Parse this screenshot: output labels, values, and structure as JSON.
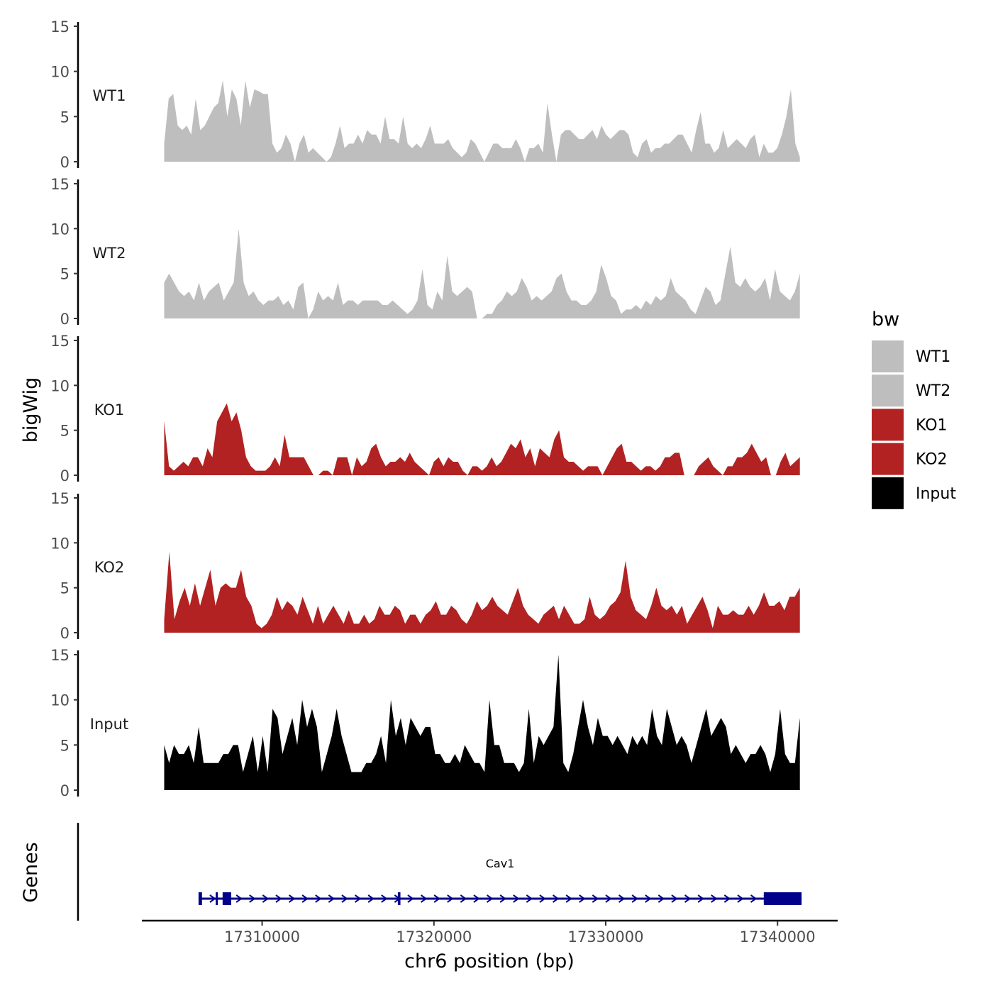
{
  "chart_data": {
    "type": "area",
    "title": "",
    "xlabel": "chr6 position (bp)",
    "ylabel": "bigWig",
    "genes_label": "Genes",
    "xlim": [
      17303000,
      17343500
    ],
    "data_x_range": [
      17304300,
      17341300
    ],
    "ylim": [
      0,
      15
    ],
    "y_ticks": [
      0,
      5,
      10,
      15
    ],
    "x_ticks": [
      17310000,
      17320000,
      17330000,
      17340000
    ],
    "x_tick_labels": [
      "17310000",
      "17320000",
      "17330000",
      "17340000"
    ],
    "legend": {
      "title": "bw",
      "entries": [
        {
          "label": "WT1",
          "color": "#bebebe"
        },
        {
          "label": "WT2",
          "color": "#bebebe"
        },
        {
          "label": "KO1",
          "color": "#b22222"
        },
        {
          "label": "KO2",
          "color": "#b22222"
        },
        {
          "label": "Input",
          "color": "#000000"
        }
      ]
    },
    "series": [
      {
        "name": "WT1",
        "color": "#bebebe",
        "values": [
          2,
          7,
          7.5,
          4,
          3.5,
          4,
          3,
          7,
          3.5,
          4,
          5,
          6,
          6.5,
          9,
          5,
          8,
          7,
          4,
          9,
          6,
          8,
          7.8,
          7.5,
          7.5,
          2,
          1,
          1.5,
          3,
          2,
          0,
          2,
          3,
          1,
          1.5,
          1,
          0.5,
          0,
          0.5,
          2,
          4,
          1.5,
          2,
          2,
          3,
          2,
          3.5,
          3,
          3,
          2,
          5,
          2.5,
          2.5,
          2,
          5,
          2,
          1.5,
          2,
          1.5,
          2.5,
          4,
          2,
          2,
          2,
          2.5,
          1.5,
          1,
          0.5,
          1,
          2.5,
          2,
          1,
          0,
          1,
          2,
          2,
          1.5,
          1.5,
          1.5,
          2.5,
          1.5,
          0,
          1.5,
          1.5,
          2,
          1,
          6.5,
          3,
          0,
          3,
          3.5,
          3.5,
          3,
          2.5,
          2.5,
          3,
          3.5,
          2.5,
          4,
          3,
          2.5,
          3,
          3.5,
          3.5,
          3,
          1,
          0.5,
          2,
          2.5,
          1,
          1.5,
          1.5,
          2,
          2,
          2.5,
          3,
          3,
          2,
          1,
          3.5,
          5.5,
          2,
          2,
          1,
          1.5,
          3.5,
          1.5,
          2,
          2.5,
          2,
          1.5,
          2.5,
          3,
          0.5,
          2,
          1,
          1,
          1.5,
          3,
          5,
          8,
          2,
          0.5
        ]
      },
      {
        "name": "WT2",
        "color": "#bebebe",
        "values": [
          4,
          5,
          4,
          3,
          2.5,
          3,
          2,
          4,
          2,
          3,
          3.5,
          4,
          2,
          3,
          4,
          10,
          4,
          2.5,
          3,
          2,
          1.5,
          2,
          2,
          2.5,
          1.5,
          2,
          1,
          3.5,
          4,
          0,
          1,
          3,
          2,
          2.5,
          2,
          4,
          1.5,
          2,
          2,
          1.5,
          2,
          2,
          2,
          2,
          1.5,
          1.5,
          2,
          1.5,
          1,
          0.5,
          1,
          2,
          5.5,
          1.5,
          1,
          3,
          2,
          7,
          3,
          2.5,
          3,
          3.5,
          3,
          0,
          0,
          0.5,
          0.5,
          1.5,
          2,
          3,
          2.5,
          3,
          4.5,
          3.5,
          2,
          2.5,
          2,
          2.5,
          3,
          4.5,
          5,
          3,
          2,
          2,
          1.5,
          1.5,
          2,
          3,
          6,
          4.5,
          2.5,
          2,
          0.5,
          1,
          1,
          1.5,
          1,
          2,
          1.5,
          2.5,
          2,
          2.5,
          4.5,
          3,
          2.5,
          2,
          1,
          0.5,
          2,
          3.5,
          3,
          1.5,
          2,
          5,
          8,
          4,
          3.5,
          4.5,
          3.5,
          3,
          3.5,
          4.5,
          2,
          5.5,
          3,
          2.5,
          2,
          3,
          5
        ]
      },
      {
        "name": "KO1",
        "color": "#b22222",
        "values": [
          6,
          1,
          0.5,
          1,
          1.5,
          1,
          2,
          2,
          1,
          3,
          2,
          6,
          7,
          8,
          6,
          7,
          5,
          2,
          1,
          0.5,
          0.5,
          0.5,
          1,
          2,
          1,
          4.5,
          2,
          2,
          2,
          2,
          1,
          0,
          0,
          0.5,
          0.5,
          0,
          2,
          2,
          2,
          0,
          2,
          1,
          1.5,
          3,
          3.5,
          2,
          1,
          1.5,
          1.5,
          2,
          1.5,
          2.5,
          1.5,
          1,
          0.5,
          0,
          1.5,
          2,
          1,
          2,
          1.5,
          1.5,
          0.5,
          0,
          1,
          1,
          0.5,
          1,
          2,
          1,
          1.5,
          2.5,
          3.5,
          3,
          4,
          2,
          3,
          1,
          3,
          2.5,
          2,
          4,
          5,
          2,
          1.5,
          1.5,
          1,
          0.5,
          1,
          1,
          1,
          0,
          1,
          2,
          3,
          3.5,
          1.5,
          1.5,
          1,
          0.5,
          1,
          1,
          0.5,
          1,
          2,
          2,
          2.5,
          2.5,
          0,
          0,
          0,
          1,
          1.5,
          2,
          1,
          0.5,
          0,
          1,
          1,
          2,
          2,
          2.5,
          3.5,
          2.5,
          1.5,
          2,
          0,
          0,
          1.5,
          2.5,
          1,
          1.5,
          2
        ]
      },
      {
        "name": "KO2",
        "color": "#b22222",
        "values": [
          1.5,
          9,
          1.5,
          3.5,
          5,
          3,
          5.5,
          3,
          5,
          7,
          3,
          5,
          5.5,
          5,
          5,
          7,
          4,
          3,
          1,
          0.5,
          1,
          2,
          4,
          2.5,
          3.5,
          3,
          2,
          4,
          2.5,
          1,
          3,
          1,
          2,
          3,
          2,
          1,
          2.5,
          1,
          1,
          2,
          1,
          1.5,
          3,
          2,
          2,
          3,
          2.5,
          1,
          2,
          2,
          1,
          2,
          2.5,
          3.5,
          2,
          2,
          3,
          2.5,
          1.5,
          1,
          2,
          3.5,
          2.5,
          3,
          4,
          3,
          2.5,
          2,
          3.5,
          5,
          3,
          2,
          1.5,
          1,
          2,
          2.5,
          3,
          1.5,
          3,
          2,
          1,
          1,
          1.5,
          4,
          2,
          1.5,
          2,
          3,
          3.5,
          4.5,
          8,
          4,
          2.5,
          2,
          1.5,
          3,
          5,
          3,
          2.5,
          3,
          2,
          3,
          1,
          2,
          3,
          4,
          2.5,
          0.5,
          3,
          2,
          2,
          2.5,
          2,
          2,
          3,
          2,
          3,
          4.5,
          3,
          3,
          3.5,
          2.5,
          4,
          4,
          5
        ]
      },
      {
        "name": "Input",
        "color": "#000000",
        "values": [
          5,
          3,
          5,
          4,
          4,
          5,
          3,
          7,
          3,
          3,
          3,
          3,
          4,
          4,
          5,
          5,
          2,
          4,
          6,
          2,
          6,
          2,
          9,
          8,
          4,
          6,
          8,
          5,
          10,
          7,
          9,
          7,
          2,
          4,
          6,
          9,
          6,
          4,
          2,
          2,
          2,
          3,
          3,
          4,
          6,
          3,
          10,
          6,
          8,
          5,
          8,
          7,
          6,
          7,
          7,
          4,
          4,
          3,
          3,
          4,
          3,
          5,
          4,
          3,
          3,
          2,
          10,
          5,
          5,
          3,
          3,
          3,
          2,
          3,
          9,
          3,
          6,
          5,
          6,
          7,
          15,
          3,
          2,
          4,
          7,
          10,
          7,
          5,
          8,
          6,
          6,
          5,
          6,
          5,
          4,
          6,
          5,
          6,
          5,
          9,
          6,
          5,
          9,
          7,
          5,
          6,
          5,
          3,
          5,
          7,
          9,
          6,
          7,
          8,
          7,
          4,
          5,
          4,
          3,
          4,
          4,
          5,
          4,
          2,
          4,
          9,
          4,
          3,
          3,
          8
        ]
      }
    ],
    "gene_track": {
      "gene": "Cav1",
      "color": "#00008b",
      "start": 17306300,
      "end": 17341400,
      "strand": "+",
      "exons": [
        [
          17306300,
          17306500
        ],
        [
          17307300,
          17307400
        ],
        [
          17307700,
          17308200
        ],
        [
          17317900,
          17318050
        ],
        [
          17339200,
          17341400
        ]
      ]
    }
  }
}
